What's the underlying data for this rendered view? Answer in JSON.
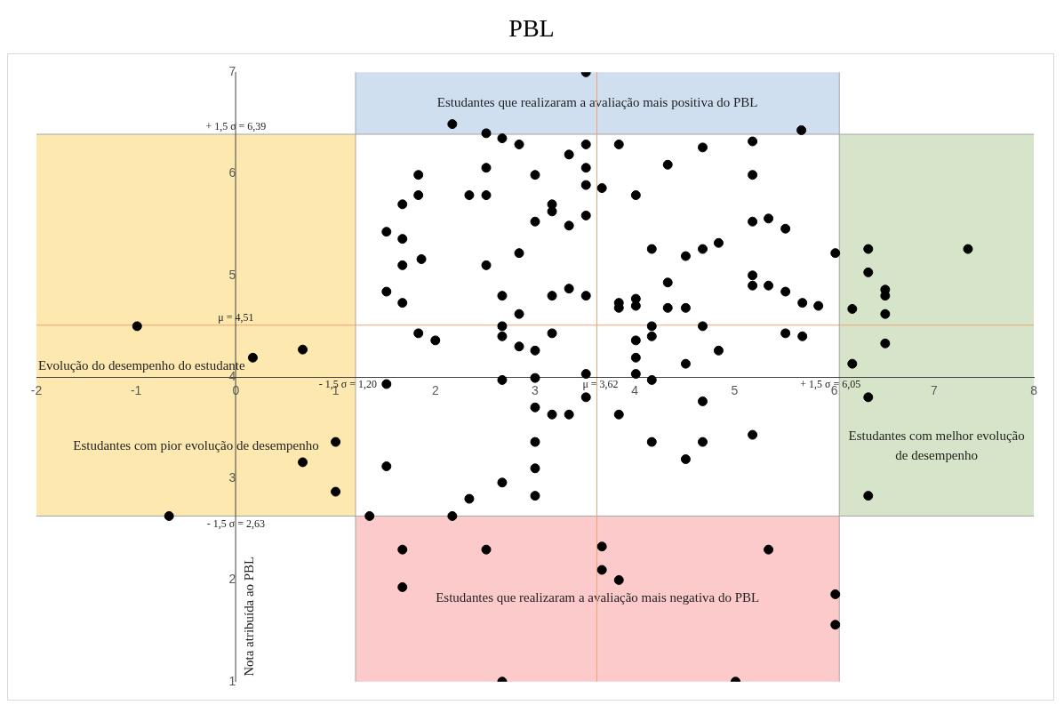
{
  "chart_data": {
    "type": "scatter",
    "title": "PBL",
    "xlabel": "Evolução do desempenho do estudante",
    "ylabel": "Nota atribuída ao PBL",
    "xlim": [
      -2,
      8
    ],
    "ylim": [
      1,
      7
    ],
    "xticks": [
      -2,
      -1,
      0,
      1,
      2,
      3,
      4,
      5,
      6,
      7,
      8
    ],
    "yticks": [
      1,
      2,
      3,
      4,
      5,
      6,
      7
    ],
    "marker": "circle",
    "series": [
      {
        "color": "#000000",
        "x": [
          3.51,
          2.17,
          2.51,
          5.67,
          2.67,
          2.84,
          3.51,
          3.84,
          5.18,
          4.68,
          3.34,
          4.33,
          2.51,
          3.51,
          1.83,
          3.0,
          5.18,
          3.51,
          3.67,
          1.83,
          2.34,
          2.51,
          4.01,
          1.67,
          3.17,
          3.17,
          3.51,
          3.0,
          3.34,
          5.18,
          5.34,
          5.51,
          1.51,
          1.67,
          2.84,
          4.17,
          4.68,
          4.51,
          4.84,
          6.01,
          6.34,
          7.34,
          1.86,
          1.67,
          2.51,
          5.18,
          6.34,
          4.33,
          5.18,
          5.34,
          6.51,
          6.51,
          1.51,
          2.67,
          3.17,
          3.34,
          3.51,
          5.51,
          1.67,
          3.84,
          3.84,
          4.01,
          4.01,
          4.33,
          4.51,
          5.68,
          5.84,
          6.18,
          6.51,
          2.84,
          2.67,
          4.17,
          4.68,
          -0.99,
          1.83,
          2.0,
          2.67,
          3.17,
          4.01,
          4.17,
          5.51,
          5.68,
          2.84,
          3.0,
          4.84,
          6.51,
          0.67,
          0.17,
          4.01,
          4.51,
          6.18,
          3.51,
          4.01,
          3.0,
          2.67,
          4.17,
          1.51,
          3.51,
          4.68,
          6.34,
          3.0,
          3.17,
          3.34,
          3.84,
          3.0,
          4.17,
          4.68,
          5.18,
          1.0,
          4.51,
          1.51,
          0.67,
          3.0,
          2.67,
          1.0,
          2.34,
          3.0,
          6.34,
          -0.67,
          1.34,
          2.17,
          1.67,
          2.51,
          3.67,
          5.34,
          3.67,
          3.84,
          1.67,
          6.01,
          6.01,
          2.67,
          5.01
        ],
        "values": [
          7.0,
          6.49,
          6.4,
          6.43,
          6.35,
          6.29,
          6.29,
          6.29,
          6.32,
          6.26,
          6.19,
          6.09,
          6.06,
          6.06,
          5.99,
          5.99,
          5.99,
          5.89,
          5.86,
          5.79,
          5.79,
          5.79,
          5.79,
          5.7,
          5.7,
          5.63,
          5.59,
          5.53,
          5.49,
          5.53,
          5.56,
          5.46,
          5.43,
          5.36,
          5.22,
          5.26,
          5.26,
          5.19,
          5.32,
          5.22,
          5.26,
          5.26,
          5.16,
          5.1,
          5.1,
          5.0,
          5.03,
          4.93,
          4.9,
          4.9,
          4.86,
          4.8,
          4.84,
          4.8,
          4.8,
          4.87,
          4.8,
          4.84,
          4.73,
          4.73,
          4.68,
          4.77,
          4.7,
          4.68,
          4.68,
          4.73,
          4.7,
          4.67,
          4.62,
          4.62,
          4.5,
          4.5,
          4.5,
          4.5,
          4.43,
          4.36,
          4.4,
          4.43,
          4.36,
          4.4,
          4.43,
          4.4,
          4.3,
          4.26,
          4.26,
          4.33,
          4.27,
          4.19,
          4.19,
          4.13,
          4.13,
          4.03,
          4.03,
          3.99,
          3.97,
          3.97,
          3.93,
          3.8,
          3.76,
          3.8,
          3.7,
          3.63,
          3.63,
          3.63,
          3.36,
          3.36,
          3.36,
          3.43,
          3.36,
          3.19,
          3.12,
          3.16,
          3.1,
          2.96,
          2.87,
          2.8,
          2.83,
          2.83,
          2.63,
          2.63,
          2.63,
          2.3,
          2.3,
          2.33,
          2.3,
          2.1,
          2.0,
          1.93,
          1.86,
          1.56,
          1.0,
          1.0
        ]
      }
    ],
    "ref_lines": [
      {
        "axis": "y",
        "value": 6.39,
        "label": "+ 1,5 σ = 6,39",
        "color": "#a6a6a6"
      },
      {
        "axis": "y",
        "value": 4.51,
        "label": "μ = 4,51",
        "color": "#f4a070"
      },
      {
        "axis": "y",
        "value": 2.63,
        "label": "- 1,5 σ = 2,63",
        "color": "#a6a6a6"
      },
      {
        "axis": "x",
        "value": 1.2,
        "label": "- 1,5 σ = 1,20",
        "color": "#a6a6a6"
      },
      {
        "axis": "x",
        "value": 3.62,
        "label": "μ = 3,62",
        "color": "#f4a070"
      },
      {
        "axis": "x",
        "value": 6.05,
        "label": "+ 1,5 σ = 6,05",
        "color": "#a6a6a6"
      }
    ],
    "bands": [
      {
        "axis": "y",
        "from": 6.39,
        "to": 7,
        "color": "#cfdff0",
        "label": "Estudantes que realizaram a avaliação mais positiva do PBL"
      },
      {
        "axis": "x",
        "from": 6.05,
        "to": 8,
        "color": "#d6e5c9",
        "label": "Estudantes com melhor evolução de desempenho"
      },
      {
        "axis": "x",
        "from": -2,
        "to": 1.2,
        "color": "#fde8b0",
        "label": "Estudantes com pior evolução de desempenho"
      },
      {
        "axis": "y",
        "from": 1,
        "to": 2.63,
        "color": "#fccaca",
        "label": "Estudantes que realizaram a avaliação mais negativa do PBL"
      }
    ]
  }
}
